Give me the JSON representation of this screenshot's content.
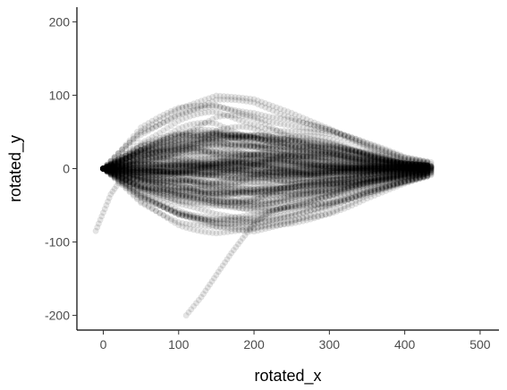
{
  "chart_data": {
    "type": "scatter",
    "title": "",
    "xlabel": "rotated_x",
    "ylabel": "rotated_y",
    "xlim": [
      -35,
      525
    ],
    "ylim": [
      -220,
      220
    ],
    "x_ticks": [
      0,
      100,
      200,
      300,
      400,
      500
    ],
    "y_ticks": [
      -200,
      -100,
      0,
      100,
      200
    ],
    "x_tick_labels": [
      "0",
      "100",
      "200",
      "300",
      "400",
      "500"
    ],
    "y_tick_labels": [
      "-200",
      "-100",
      "0",
      "100",
      "200"
    ],
    "grid": false,
    "legend": "none",
    "point_color": "#000000",
    "point_alpha": 0.1,
    "description_of_data": "Many trajectories starting at (0,0) and converging near (440,0); envelope spreads to about +130 / -110 around x=150, plus outlier tracks reaching (110,-200) and (-10,-85).",
    "envelope": {
      "x": [
        0,
        50,
        100,
        150,
        200,
        250,
        300,
        350,
        400,
        440
      ],
      "upper": [
        0,
        70,
        105,
        125,
        120,
        100,
        75,
        45,
        20,
        10
      ],
      "lower": [
        0,
        -55,
        -85,
        -100,
        -105,
        -90,
        -70,
        -45,
        -25,
        -10
      ]
    },
    "outlier_tracks": [
      {
        "x": [
          110,
          130,
          150,
          170,
          185,
          200,
          220,
          250
        ],
        "y": [
          -200,
          -175,
          -145,
          -115,
          -95,
          -75,
          -60,
          -50
        ]
      },
      {
        "x": [
          -10,
          0,
          10,
          20,
          40
        ],
        "y": [
          -85,
          -60,
          -35,
          -20,
          -10
        ]
      }
    ]
  }
}
